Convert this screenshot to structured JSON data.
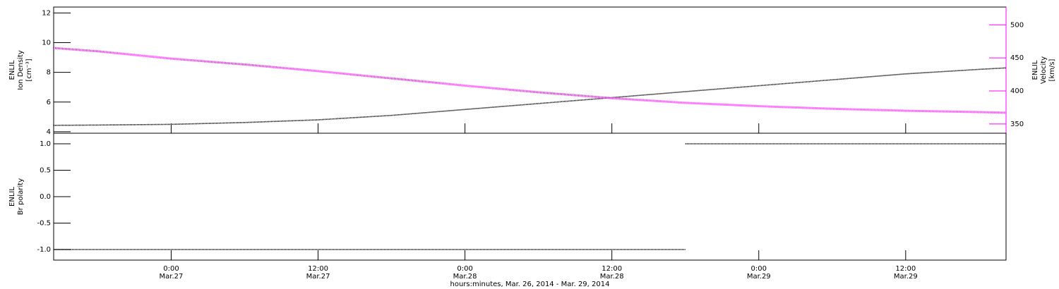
{
  "chart_data": [
    {
      "type": "line",
      "y_label": [
        "ENLIL",
        "Ion Density",
        "[cm⁻³]"
      ],
      "y2_label": [
        "ENLIL",
        "Velocity",
        "[km/s]"
      ],
      "xlim": [
        14.4,
        92.2
      ],
      "ylim": [
        3.9,
        12.4
      ],
      "yticks": [
        4,
        6,
        8,
        10,
        12
      ],
      "y2lim": [
        336,
        527
      ],
      "y2ticks": [
        350,
        400,
        450,
        500
      ],
      "x": [
        14.4,
        18,
        24,
        30,
        36,
        42,
        48,
        54,
        60,
        66,
        72,
        78,
        84,
        90,
        92.2
      ],
      "series": [
        {
          "name": "Ion Density",
          "color": "#000000",
          "values": [
            4.43,
            4.45,
            4.5,
            4.62,
            4.8,
            5.1,
            5.5,
            5.9,
            6.3,
            6.7,
            7.1,
            7.5,
            7.9,
            8.2,
            8.3
          ]
        },
        {
          "name": "Velocity",
          "color": "#ff00ff",
          "axis": "y2",
          "values": [
            465,
            460,
            449,
            440,
            430,
            419,
            408,
            398,
            389,
            382,
            377,
            373,
            370,
            368,
            367
          ]
        }
      ]
    },
    {
      "type": "line",
      "y_label": [
        "ENLIL",
        "Br polarity"
      ],
      "x_label": "hours:minutes, Mar. 26, 2014 - Mar. 29, 2014",
      "xlim": [
        14.4,
        92.2
      ],
      "xticks": [
        {
          "value": 24,
          "label": [
            "0:00",
            "Mar.27"
          ]
        },
        {
          "value": 36,
          "label": [
            "12:00",
            "Mar.27"
          ]
        },
        {
          "value": 48,
          "label": [
            "0:00",
            "Mar.28"
          ]
        },
        {
          "value": 60,
          "label": [
            "12:00",
            "Mar.28"
          ]
        },
        {
          "value": 72,
          "label": [
            "0:00",
            "Mar.29"
          ]
        },
        {
          "value": 84,
          "label": [
            "12:00",
            "Mar.29"
          ]
        }
      ],
      "ylim": [
        -1.2,
        1.2
      ],
      "yticks": [
        {
          "value": -1,
          "label": "-1.0"
        },
        {
          "value": -0.5,
          "label": "-0.5"
        },
        {
          "value": 0,
          "label": "0.0"
        },
        {
          "value": 0.5,
          "label": "0.5"
        },
        {
          "value": 1,
          "label": "1.0"
        }
      ],
      "x": [
        14.4,
        66,
        66,
        66,
        92.2
      ],
      "series": [
        {
          "name": "Br polarity",
          "color": "#000000",
          "values": [
            -1,
            -1,
            null,
            1,
            1
          ]
        }
      ]
    }
  ]
}
